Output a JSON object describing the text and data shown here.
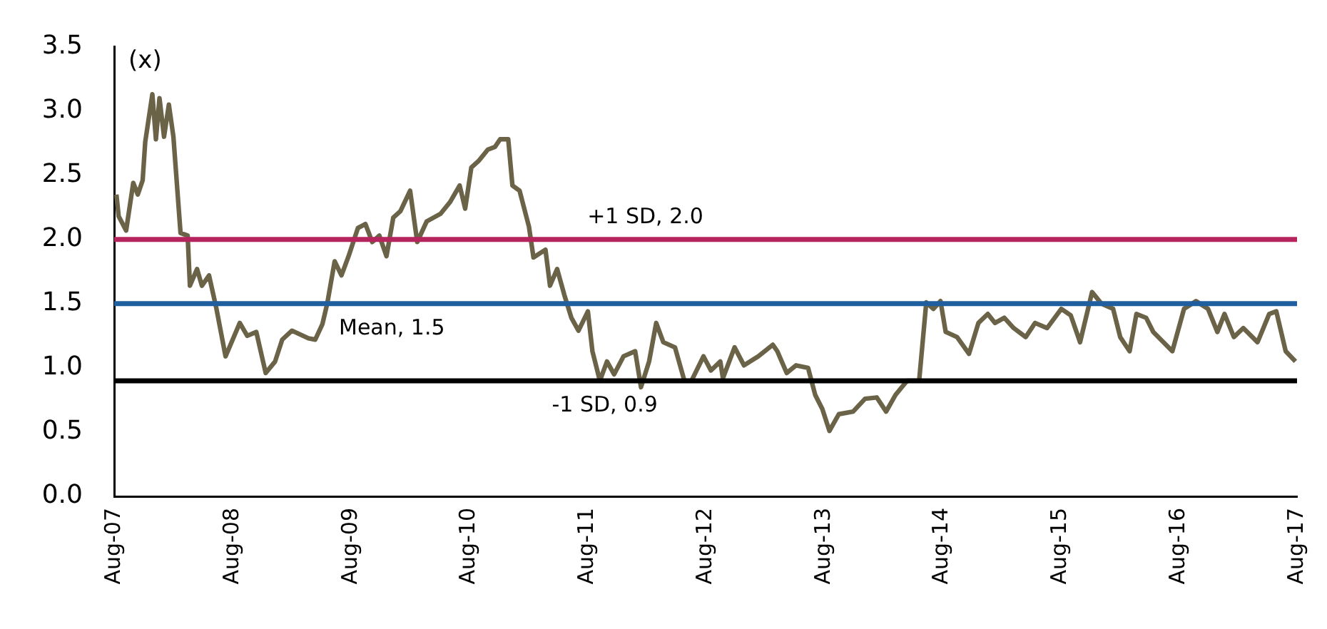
{
  "chart_data": {
    "type": "line",
    "ylabel": "(x)",
    "xlim": [
      "2007-08-01",
      "2017-08-01"
    ],
    "xticks": [
      {
        "value": "2007-08-01",
        "label": "Aug-07"
      },
      {
        "value": "2008-08-01",
        "label": "Aug-08"
      },
      {
        "value": "2009-08-01",
        "label": "Aug-09"
      },
      {
        "value": "2010-08-01",
        "label": "Aug-10"
      },
      {
        "value": "2011-08-01",
        "label": "Aug-11"
      },
      {
        "value": "2012-08-01",
        "label": "Aug-12"
      },
      {
        "value": "2013-08-01",
        "label": "Aug-13"
      },
      {
        "value": "2014-08-01",
        "label": "Aug-14"
      },
      {
        "value": "2015-08-01",
        "label": "Aug-15"
      },
      {
        "value": "2016-08-01",
        "label": "Aug-16"
      },
      {
        "value": "2017-08-01",
        "label": "Aug-17"
      }
    ],
    "ylim": [
      0,
      3.5
    ],
    "yticks": [
      {
        "value": 0,
        "label": "0.0"
      },
      0.5,
      {
        "value": 1,
        "label": "1.0"
      },
      1.5,
      {
        "value": 2,
        "label": "2.0"
      },
      2.5,
      {
        "value": 3,
        "label": "3.0"
      },
      3.5
    ],
    "grid": false,
    "legend": false,
    "marker": "none",
    "line_style": "solid",
    "ref_lines": [
      {
        "axis": "y",
        "value": 2.0,
        "label": "+1 SD, 2.0",
        "color": "#b5245c"
      },
      {
        "axis": "y",
        "value": 1.5,
        "label": "Mean, 1.5",
        "color": "#1f5fa0"
      },
      {
        "axis": "y",
        "value": 0.9,
        "label": "-1 SD, 0.9",
        "color": "#000000"
      }
    ],
    "series": [
      {
        "color": "#6b6347",
        "x": [
          "2007-08-08",
          "2007-08-15",
          "2007-09-07",
          "2007-09-29",
          "2007-10-13",
          "2007-10-28",
          "2007-11-05",
          "2007-11-27",
          "2007-12-08",
          "2007-12-19",
          "2008-01-02",
          "2008-01-17",
          "2008-01-31",
          "2008-02-22",
          "2008-03-15",
          "2008-03-22",
          "2008-04-13",
          "2008-04-28",
          "2008-05-20",
          "2008-06-12",
          "2008-07-10",
          "2008-08-23",
          "2008-09-15",
          "2008-10-13",
          "2008-11-11",
          "2008-12-10",
          "2009-01-01",
          "2009-01-31",
          "2009-03-23",
          "2009-04-13",
          "2009-05-05",
          "2009-05-20",
          "2009-06-12",
          "2009-07-03",
          "2009-07-25",
          "2009-08-23",
          "2009-09-15",
          "2009-10-06",
          "2009-10-28",
          "2009-11-19",
          "2009-12-10",
          "2010-01-01",
          "2010-01-31",
          "2010-02-22",
          "2010-03-23",
          "2010-05-05",
          "2010-06-03",
          "2010-07-03",
          "2010-07-20",
          "2010-08-08",
          "2010-08-30",
          "2010-09-28",
          "2010-10-20",
          "2010-11-05",
          "2010-11-30",
          "2010-12-13",
          "2011-01-04",
          "2011-02-02",
          "2011-02-16",
          "2011-03-25",
          "2011-04-08",
          "2011-04-30",
          "2011-05-22",
          "2011-06-13",
          "2011-07-05",
          "2011-08-03",
          "2011-08-17",
          "2011-09-09",
          "2011-10-01",
          "2011-10-23",
          "2011-11-21",
          "2011-12-27",
          "2012-01-14",
          "2012-02-08",
          "2012-03-01",
          "2012-03-23",
          "2012-04-28",
          "2012-05-27",
          "2012-06-18",
          "2012-07-25",
          "2012-08-17",
          "2012-09-15",
          "2012-09-23",
          "2012-10-29",
          "2012-11-27",
          "2013-01-10",
          "2013-02-24",
          "2013-03-10",
          "2013-04-08",
          "2013-05-07",
          "2013-06-13",
          "2013-07-05",
          "2013-07-27",
          "2013-08-18",
          "2013-09-16",
          "2013-10-30",
          "2013-12-06",
          "2014-01-11",
          "2014-02-09",
          "2014-03-10",
          "2014-04-15",
          "2014-05-22",
          "2014-06-13",
          "2014-07-05",
          "2014-07-27",
          "2014-08-12",
          "2014-09-16",
          "2014-10-23",
          "2014-11-21",
          "2014-12-20",
          "2015-01-11",
          "2015-02-09",
          "2015-03-10",
          "2015-04-16",
          "2015-05-15",
          "2015-06-21",
          "2015-08-04",
          "2015-09-02",
          "2015-10-01",
          "2015-11-07",
          "2015-12-06",
          "2016-01-11",
          "2016-02-02",
          "2016-03-02",
          "2016-03-23",
          "2016-04-22",
          "2016-05-14",
          "2016-07-12",
          "2016-08-17",
          "2016-09-23",
          "2016-10-30",
          "2016-11-28",
          "2016-12-20",
          "2017-01-18",
          "2017-02-16",
          "2017-04-01",
          "2017-05-07",
          "2017-05-29",
          "2017-06-27",
          "2017-07-27"
        ],
        "values": [
          2.35,
          2.18,
          2.07,
          2.44,
          2.35,
          2.46,
          2.76,
          3.13,
          2.78,
          3.1,
          2.8,
          3.05,
          2.8,
          2.05,
          2.03,
          1.64,
          1.77,
          1.64,
          1.72,
          1.46,
          1.09,
          1.35,
          1.25,
          1.28,
          0.96,
          1.05,
          1.22,
          1.29,
          1.23,
          1.22,
          1.34,
          1.5,
          1.83,
          1.72,
          1.87,
          2.09,
          2.12,
          1.98,
          2.03,
          1.87,
          2.17,
          2.22,
          2.38,
          1.98,
          2.14,
          2.2,
          2.29,
          2.42,
          2.24,
          2.56,
          2.61,
          2.7,
          2.72,
          2.78,
          2.78,
          2.42,
          2.38,
          2.1,
          1.86,
          1.92,
          1.64,
          1.77,
          1.57,
          1.39,
          1.29,
          1.44,
          1.13,
          0.9,
          1.05,
          0.95,
          1.09,
          1.13,
          0.85,
          1.05,
          1.35,
          1.2,
          1.16,
          0.9,
          0.9,
          1.09,
          0.98,
          1.05,
          0.92,
          1.16,
          1.02,
          1.09,
          1.18,
          1.13,
          0.96,
          1.02,
          1.0,
          0.79,
          0.68,
          0.51,
          0.64,
          0.66,
          0.76,
          0.77,
          0.66,
          0.79,
          0.9,
          0.9,
          1.51,
          1.46,
          1.52,
          1.28,
          1.24,
          1.11,
          1.35,
          1.42,
          1.35,
          1.39,
          1.31,
          1.24,
          1.35,
          1.31,
          1.46,
          1.41,
          1.2,
          1.59,
          1.5,
          1.46,
          1.24,
          1.13,
          1.42,
          1.39,
          1.28,
          1.13,
          1.46,
          1.52,
          1.46,
          1.28,
          1.42,
          1.24,
          1.31,
          1.2,
          1.42,
          1.44,
          1.13,
          1.05
        ]
      }
    ]
  }
}
